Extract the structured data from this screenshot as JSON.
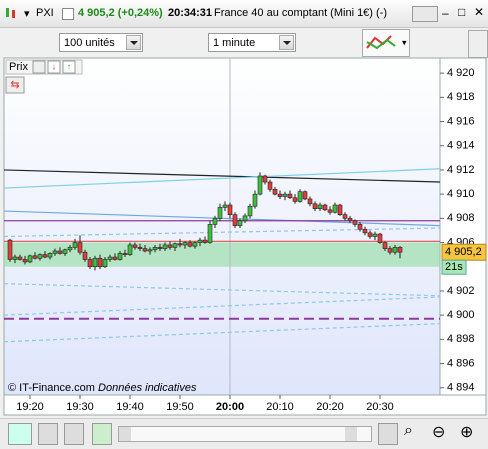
{
  "title_bar": {
    "symbol": "PXI",
    "price": "4 905,2 (+0,24%)",
    "time": "20:34:31",
    "instrument": "France 40 au comptant (Mini 1€) (-)"
  },
  "toolbar": {
    "quantity": "100 unités",
    "interval": "1 minute"
  },
  "panel": {
    "label": "Prix"
  },
  "chart_data": {
    "type": "candlestick",
    "up_color": "#3fbf3f",
    "down_color": "#e03c3c",
    "categories": [
      null,
      null,
      null,
      null,
      "19:20",
      null,
      null,
      null,
      null,
      null,
      null,
      null,
      null,
      null,
      "19:30",
      null,
      null,
      null,
      null,
      null,
      null,
      null,
      null,
      null,
      "19:40",
      null,
      null,
      null,
      null,
      null,
      null,
      null,
      null,
      null,
      "19:50",
      null,
      null,
      null,
      null,
      null,
      null,
      null,
      null,
      null,
      "20:00",
      null,
      null,
      null,
      null,
      null,
      null,
      null,
      null,
      null,
      "20:10",
      null,
      null,
      null,
      null,
      null,
      null,
      null,
      null,
      null,
      "20:20",
      null,
      null,
      null,
      null,
      null,
      null,
      null,
      null,
      null,
      "20:30",
      null,
      null,
      null,
      null
    ],
    "candles": [
      [
        4906.2,
        4906.3,
        4904.4,
        4904.6
      ],
      [
        4904.6,
        4905.0,
        4904.3,
        4904.8
      ],
      [
        4904.8,
        4905.0,
        4904.5,
        4904.6
      ],
      [
        4904.6,
        4904.9,
        4904.2,
        4904.4
      ],
      [
        4904.4,
        4905.0,
        4904.3,
        4904.9
      ],
      [
        4904.9,
        4905.2,
        4904.6,
        4904.7
      ],
      [
        4904.7,
        4905.1,
        4904.5,
        4905.0
      ],
      [
        4905.0,
        4905.3,
        4904.7,
        4904.8
      ],
      [
        4904.8,
        4905.2,
        4904.6,
        4905.1
      ],
      [
        4905.1,
        4905.5,
        4904.9,
        4905.3
      ],
      [
        4905.3,
        4905.6,
        4905.0,
        4905.1
      ],
      [
        4905.1,
        4905.5,
        4904.9,
        4905.4
      ],
      [
        4905.4,
        4905.8,
        4905.2,
        4905.6
      ],
      [
        4905.6,
        4906.3,
        4905.4,
        4906.0
      ],
      [
        4906.0,
        4906.6,
        4905.0,
        4905.2
      ],
      [
        4905.2,
        4905.4,
        4904.4,
        4904.6
      ],
      [
        4904.6,
        4904.8,
        4903.8,
        4904.0
      ],
      [
        4904.0,
        4904.9,
        4903.7,
        4904.7
      ],
      [
        4904.7,
        4905.0,
        4903.8,
        4904.0
      ],
      [
        4904.0,
        4904.8,
        4903.9,
        4904.6
      ],
      [
        4904.6,
        4905.0,
        4904.4,
        4904.8
      ],
      [
        4904.8,
        4905.1,
        4904.5,
        4904.6
      ],
      [
        4904.6,
        4905.3,
        4904.5,
        4905.1
      ],
      [
        4905.1,
        4905.4,
        4904.8,
        4905.0
      ],
      [
        4905.0,
        4906.0,
        4904.9,
        4905.8
      ],
      [
        4905.8,
        4906.0,
        4905.4,
        4905.6
      ],
      [
        4905.6,
        4905.9,
        4905.3,
        4905.5
      ],
      [
        4905.5,
        4905.8,
        4905.2,
        4905.3
      ],
      [
        4905.3,
        4905.6,
        4905.0,
        4905.4
      ],
      [
        4905.4,
        4905.8,
        4905.2,
        4905.6
      ],
      [
        4905.6,
        4905.9,
        4905.3,
        4905.5
      ],
      [
        4905.5,
        4906.0,
        4905.3,
        4905.8
      ],
      [
        4905.8,
        4906.1,
        4905.4,
        4905.6
      ],
      [
        4905.6,
        4906.0,
        4905.3,
        4905.9
      ],
      [
        4905.9,
        4906.3,
        4905.6,
        4905.8
      ],
      [
        4905.8,
        4906.1,
        4905.5,
        4906.0
      ],
      [
        4906.0,
        4906.2,
        4905.6,
        4905.7
      ],
      [
        4905.7,
        4906.1,
        4905.5,
        4906.0
      ],
      [
        4906.0,
        4906.4,
        4905.7,
        4906.2
      ],
      [
        4906.2,
        4906.5,
        4905.9,
        4906.0
      ],
      [
        4906.0,
        4907.8,
        4905.9,
        4907.5
      ],
      [
        4907.5,
        4908.2,
        4907.2,
        4908.0
      ],
      [
        4908.0,
        4909.2,
        4907.8,
        4908.9
      ],
      [
        4908.9,
        4909.4,
        4908.6,
        4909.1
      ],
      [
        4909.1,
        4909.3,
        4908.0,
        4908.3
      ],
      [
        4908.3,
        4908.5,
        4907.2,
        4907.4
      ],
      [
        4907.4,
        4908.0,
        4907.2,
        4907.8
      ],
      [
        4907.8,
        4908.4,
        4907.6,
        4908.2
      ],
      [
        4908.2,
        4909.2,
        4908.0,
        4909.0
      ],
      [
        4909.0,
        4910.3,
        4908.8,
        4910.0
      ],
      [
        4910.0,
        4911.8,
        4909.9,
        4911.5
      ],
      [
        4911.5,
        4911.6,
        4910.8,
        4911.0
      ],
      [
        4911.0,
        4911.2,
        4910.2,
        4910.4
      ],
      [
        4910.4,
        4910.6,
        4909.9,
        4910.0
      ],
      [
        4910.0,
        4910.3,
        4909.6,
        4909.8
      ],
      [
        4909.8,
        4910.2,
        4909.5,
        4910.0
      ],
      [
        4910.0,
        4910.3,
        4909.6,
        4909.7
      ],
      [
        4909.7,
        4910.0,
        4909.2,
        4909.4
      ],
      [
        4909.4,
        4910.4,
        4909.3,
        4910.2
      ],
      [
        4910.2,
        4910.3,
        4909.5,
        4909.6
      ],
      [
        4909.6,
        4909.8,
        4909.0,
        4909.2
      ],
      [
        4909.2,
        4909.4,
        4908.6,
        4908.8
      ],
      [
        4908.8,
        4909.3,
        4908.6,
        4909.1
      ],
      [
        4909.1,
        4909.2,
        4908.6,
        4908.7
      ],
      [
        4908.7,
        4909.0,
        4908.3,
        4908.5
      ],
      [
        4908.5,
        4909.3,
        4908.4,
        4909.1
      ],
      [
        4909.1,
        4909.2,
        4908.2,
        4908.3
      ],
      [
        4908.3,
        4908.5,
        4907.8,
        4908.0
      ],
      [
        4908.0,
        4908.2,
        4907.6,
        4907.8
      ],
      [
        4907.8,
        4907.9,
        4907.3,
        4907.5
      ],
      [
        4907.5,
        4907.7,
        4906.9,
        4907.1
      ],
      [
        4907.1,
        4907.3,
        4906.6,
        4906.8
      ],
      [
        4906.8,
        4907.0,
        4906.3,
        4906.5
      ],
      [
        4906.5,
        4906.9,
        4906.2,
        4906.7
      ],
      [
        4906.7,
        4906.8,
        4905.9,
        4906.0
      ],
      [
        4906.0,
        4906.1,
        4905.3,
        4905.5
      ],
      [
        4905.5,
        4905.7,
        4905.0,
        4905.2
      ],
      [
        4905.2,
        4905.8,
        4905.0,
        4905.6
      ],
      [
        4905.6,
        4905.7,
        4904.7,
        4905.2
      ]
    ],
    "ylim": [
      4893.4,
      4921.25
    ],
    "yticks": [
      {
        "value": 4894,
        "label": "4 894"
      },
      {
        "value": 4896,
        "label": "4 896"
      },
      {
        "value": 4898,
        "label": "4 898"
      },
      {
        "value": 4900,
        "label": "4 900"
      },
      {
        "value": 4902,
        "label": "4 902"
      },
      {
        "value": 4906,
        "label": "4 906"
      },
      {
        "value": 4908,
        "label": "4 908"
      },
      {
        "value": 4910,
        "label": "4 910"
      },
      {
        "value": 4912,
        "label": "4 912"
      },
      {
        "value": 4914,
        "label": "4 914"
      },
      {
        "value": 4916,
        "label": "4 916"
      },
      {
        "value": 4918,
        "label": "4 918"
      },
      {
        "value": 4920,
        "label": "4 920"
      }
    ],
    "zone": {
      "color": "#8fdc9f",
      "values": [
        4904.0,
        4906.0
      ]
    },
    "lines": [
      {
        "color": "#222222",
        "dashed": false,
        "values": [
          4912.0,
          4911.0
        ]
      },
      {
        "color": "#7ccfe8",
        "dashed": false,
        "values": [
          4910.5,
          4912.1
        ]
      },
      {
        "color": "#6fa8dc",
        "dashed": false,
        "values": [
          4908.6,
          4907.4
        ]
      },
      {
        "color": "#8e3a9e",
        "dashed": false,
        "values": [
          4907.8,
          4907.8
        ]
      },
      {
        "color": "#e05050",
        "dashed": false,
        "values": [
          4906.1,
          4906.1
        ]
      },
      {
        "color": "#8ec8ec",
        "dashed": true,
        "values": [
          4906.5,
          4907.2
        ]
      },
      {
        "color": "#8ec8ec",
        "dashed": true,
        "values": [
          4902.6,
          4901.6
        ]
      },
      {
        "color": "#8ec8ec",
        "dashed": true,
        "values": [
          4900.0,
          4901.5
        ]
      },
      {
        "color": "#8ec8ec",
        "dashed": true,
        "values": [
          4897.8,
          4899.3
        ]
      },
      {
        "color": "#8e3a9e",
        "dashed": true,
        "values": [
          4899.7,
          4899.7
        ]
      }
    ],
    "last_price": {
      "value": 4905.2,
      "label": "4 905,2",
      "countdown": "21s"
    },
    "copyright": "© IT-Finance.com",
    "disclaimer": "Données indicatives"
  }
}
